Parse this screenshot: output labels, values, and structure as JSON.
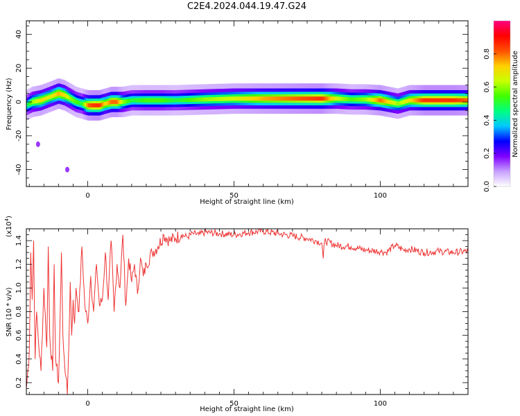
{
  "title": "C2E4.2024.044.19.47.G24",
  "colorbar": {
    "label": "Normalized spectral amplitude",
    "ticks": [
      "0.0",
      "0.2",
      "0.4",
      "0.6",
      "0.8"
    ],
    "tick_values": [
      0.0,
      0.2,
      0.4,
      0.6,
      0.8
    ],
    "range": [
      0,
      1
    ],
    "colormap": [
      "#ffffff",
      "#c8a0ff",
      "#7f00ff",
      "#0000ff",
      "#00c8ff",
      "#00ff80",
      "#40ff00",
      "#c8ff00",
      "#ffd000",
      "#ff5000",
      "#ff0000",
      "#ff0080"
    ]
  },
  "chart_data": [
    {
      "type": "heatmap",
      "xlabel": "Height of straight line (km)",
      "ylabel": "Frequency (Hz)",
      "xlim": [
        -21,
        130
      ],
      "ylim": [
        -50,
        48
      ],
      "xticks": [
        0,
        50,
        100
      ],
      "xtick_labels": [
        "0",
        "50",
        "100"
      ],
      "yticks": [
        -40,
        -20,
        0,
        20,
        40
      ],
      "ytick_labels": [
        "-40",
        "-20",
        "0",
        "20",
        "40"
      ],
      "ridge": {
        "x": [
          -21,
          -19,
          -16,
          -13,
          -10,
          -8,
          -6,
          -4,
          -2,
          0,
          2,
          4,
          6,
          8,
          10,
          12,
          15,
          20,
          25,
          30,
          40,
          50,
          60,
          70,
          80,
          85,
          90,
          95,
          100,
          103,
          106,
          110,
          115,
          120,
          125,
          130
        ],
        "y": [
          -2,
          0,
          1,
          3,
          5,
          4,
          2,
          0,
          -1,
          -2,
          -2,
          -2,
          -1,
          0,
          0,
          0,
          1,
          1,
          1,
          1,
          1.5,
          2,
          2,
          2,
          2,
          2,
          1.5,
          1.5,
          1,
          0,
          -1,
          1,
          1,
          1,
          1,
          1
        ],
        "amplitude": [
          0.45,
          0.6,
          0.7,
          0.65,
          0.75,
          0.7,
          0.6,
          0.55,
          0.5,
          0.8,
          0.85,
          0.85,
          0.7,
          0.8,
          0.8,
          0.6,
          0.5,
          0.55,
          0.55,
          0.5,
          0.6,
          0.65,
          0.75,
          0.8,
          0.85,
          0.65,
          0.55,
          0.6,
          0.8,
          0.7,
          0.6,
          0.7,
          0.85,
          0.85,
          0.85,
          0.8
        ]
      },
      "spots": [
        {
          "x": -17,
          "y": -25,
          "amplitude": 0.15
        },
        {
          "x": -7,
          "y": -40,
          "amplitude": 0.15
        }
      ]
    },
    {
      "type": "line",
      "xlabel": "Height of straight line (km)",
      "ylabel": "SNR (10 * v/v)",
      "yscale_label": "(x10",
      "yscale_exponent": "4",
      "yscale_suffix": ")",
      "xlim": [
        -21,
        130
      ],
      "ylim": [
        0.1,
        1.5
      ],
      "xticks": [
        0,
        50,
        100
      ],
      "xtick_labels": [
        "0",
        "50",
        "100"
      ],
      "yticks": [
        0.2,
        0.4,
        0.6,
        0.8,
        1.0,
        1.2,
        1.4
      ],
      "ytick_labels": [
        "0.2",
        "0.4",
        "0.6",
        "0.8",
        "1.0",
        "1.2",
        "1.4"
      ],
      "color": "#ee3333",
      "series": [
        {
          "x": [
            -21,
            -20,
            -19.5,
            -19,
            -18.5,
            -18,
            -17.5,
            -17,
            -16,
            -15,
            -14,
            -13.5,
            -13,
            -12,
            -11.5,
            -11,
            -10,
            -9.5,
            -9,
            -8.5,
            -8,
            -7.5,
            -7,
            -6.5,
            -6,
            -5.5,
            -5,
            -4.5,
            -4,
            -3,
            -2,
            -1,
            0,
            1,
            2,
            3,
            4,
            5,
            6,
            7,
            8,
            9,
            10,
            11,
            12,
            13,
            14,
            15,
            16,
            17,
            18,
            19,
            20,
            22,
            24,
            26,
            28,
            30,
            32,
            34,
            36,
            38,
            40,
            45,
            50,
            55,
            60,
            65,
            70,
            75,
            78,
            80,
            80.5,
            81,
            85,
            90,
            95,
            100,
            102,
            105,
            108,
            110,
            115,
            120,
            125,
            130
          ],
          "y": [
            0.15,
            0.45,
            1.3,
            0.9,
            1.4,
            0.4,
            0.8,
            0.6,
            0.3,
            1.0,
            0.5,
            1.35,
            0.6,
            0.3,
            1.2,
            0.4,
            0.2,
            0.7,
            1.3,
            0.6,
            0.4,
            0.25,
            0.1,
            0.5,
            1.05,
            0.6,
            0.9,
            0.7,
            1.0,
            0.8,
            1.35,
            0.85,
            0.7,
            1.1,
            0.8,
            1.2,
            0.85,
            0.9,
            1.3,
            0.9,
            1.4,
            0.8,
            1.2,
            1.0,
            1.45,
            0.85,
            1.25,
            1.05,
            1.2,
            0.95,
            1.25,
            1.1,
            1.2,
            1.3,
            1.35,
            1.45,
            1.4,
            1.42,
            1.45,
            1.43,
            1.46,
            1.45,
            1.47,
            1.46,
            1.45,
            1.47,
            1.48,
            1.46,
            1.44,
            1.42,
            1.4,
            1.38,
            1.25,
            1.4,
            1.36,
            1.35,
            1.32,
            1.31,
            1.3,
            1.36,
            1.32,
            1.33,
            1.3,
            1.31,
            1.3,
            1.31
          ]
        }
      ]
    }
  ]
}
